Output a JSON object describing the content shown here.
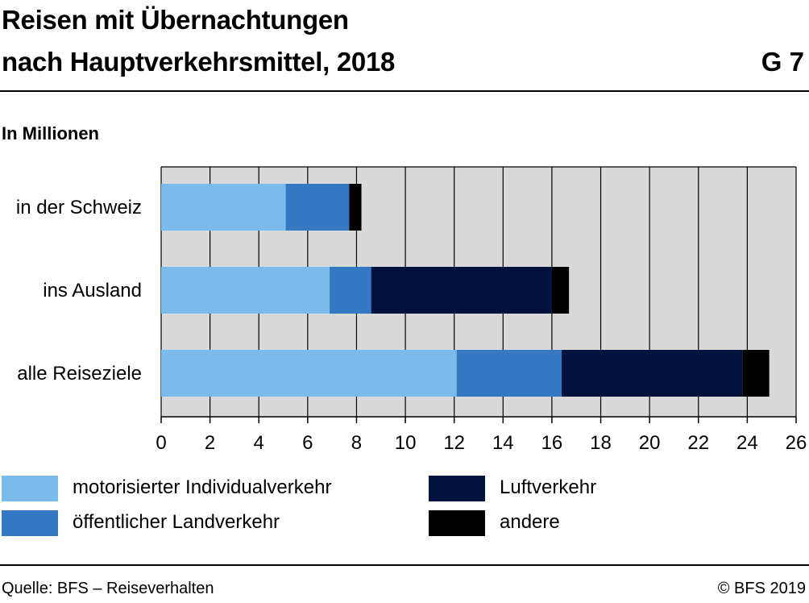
{
  "header": {
    "title_line1": "Reisen mit Übernachtungen",
    "title_line2": "nach Hauptverkehrsmittel, 2018",
    "chart_number": "G 7",
    "unit": "In Millionen"
  },
  "footer": {
    "source": "Quelle: BFS – Reiseverhalten",
    "copyright": "© BFS 2019"
  },
  "colors": {
    "plot_background": "#d9d9d9",
    "grid": "#000000",
    "series": [
      "#7bbbec",
      "#3478c3",
      "#01123d",
      "#000000"
    ]
  },
  "chart_data": {
    "type": "bar",
    "orientation": "horizontal",
    "stacked": true,
    "title": "Reisen mit Übernachtungen nach Hauptverkehrsmittel, 2018",
    "xlabel": "In Millionen",
    "ylabel": "",
    "categories": [
      "in der Schweiz",
      "ins Ausland",
      "alle Reiseziele"
    ],
    "series": [
      {
        "name": "motorisierter Individualverkehr",
        "values": [
          5.1,
          6.9,
          12.1
        ]
      },
      {
        "name": "öffentlicher Landverkehr",
        "values": [
          2.6,
          1.7,
          4.3
        ]
      },
      {
        "name": "Luftverkehr",
        "values": [
          0.0,
          7.4,
          7.4
        ]
      },
      {
        "name": "andere",
        "values": [
          0.5,
          0.7,
          1.1
        ]
      }
    ],
    "xlim": [
      0,
      26
    ],
    "xticks": [
      0,
      2,
      4,
      6,
      8,
      10,
      12,
      14,
      16,
      18,
      20,
      22,
      24,
      26
    ],
    "grid": true,
    "legend_position": "bottom"
  }
}
